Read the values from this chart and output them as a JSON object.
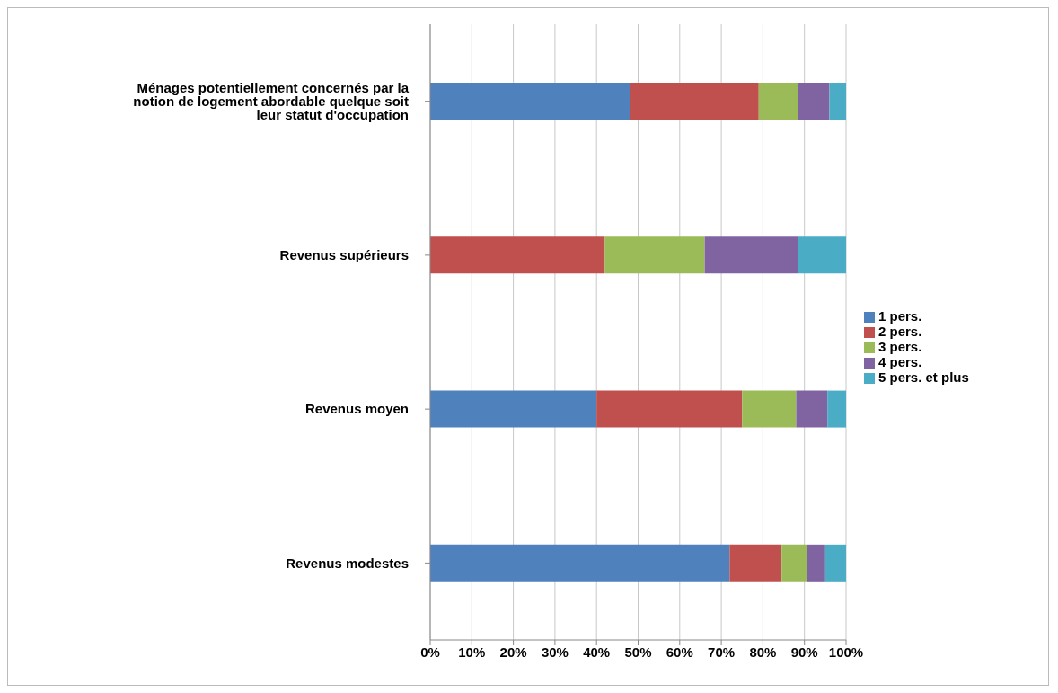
{
  "chart_data": {
    "type": "bar",
    "orientation": "horizontal",
    "stacked": true,
    "categories": [
      "Ménages potentiellement concernés par la notion de logement abordable quelque soit leur statut d'occupation",
      "Revenus supérieurs",
      "Revenus moyen",
      "Revenus modestes"
    ],
    "series": [
      {
        "name": "1 pers.",
        "color": "#4f81bd",
        "values": [
          48,
          0,
          40,
          72
        ]
      },
      {
        "name": "2 pers.",
        "color": "#c0504d",
        "values": [
          31,
          42,
          35,
          12.5
        ]
      },
      {
        "name": "3 pers.",
        "color": "#9bbb59",
        "values": [
          9.5,
          24,
          13,
          6
        ]
      },
      {
        "name": "4 pers.",
        "color": "#8064a2",
        "values": [
          7.5,
          22.5,
          7.5,
          4.5
        ]
      },
      {
        "name": "5 pers. et plus",
        "color": "#4bacc6",
        "values": [
          4,
          11.5,
          4.5,
          5
        ]
      }
    ],
    "xlim": [
      0,
      100
    ],
    "xticks": [
      {
        "value": 0,
        "label": "0%"
      },
      {
        "value": 10,
        "label": "10%"
      },
      {
        "value": 20,
        "label": "20%"
      },
      {
        "value": 30,
        "label": "30%"
      },
      {
        "value": 40,
        "label": "40%"
      },
      {
        "value": 50,
        "label": "50%"
      },
      {
        "value": 60,
        "label": "60%"
      },
      {
        "value": 70,
        "label": "70%"
      },
      {
        "value": 80,
        "label": "80%"
      },
      {
        "value": 90,
        "label": "90%"
      },
      {
        "value": 100,
        "label": "100%"
      }
    ],
    "grid": "x",
    "legend": "right"
  }
}
